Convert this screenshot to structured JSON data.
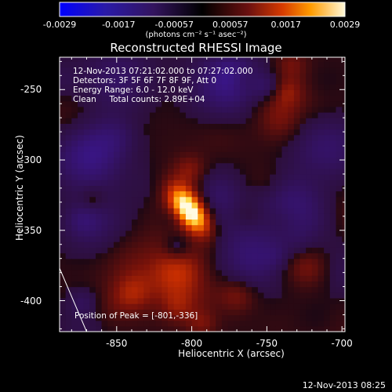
{
  "colorbar": {
    "ticks": [
      "-0.0029",
      "-0.0017",
      "-0.00057",
      "0.00057",
      "0.0017",
      "0.0029"
    ],
    "tick_values": [
      -0.0029,
      -0.0017,
      -0.00057,
      0.00057,
      0.0017,
      0.0029
    ],
    "units_text": "(photons cm⁻² s⁻¹ asec⁻²)"
  },
  "info": {
    "time_range": "12-Nov-2013 07:21:02.000 to 07:27:02.000",
    "detectors": "Detectors: 3F 5F 6F 7F 8F 9F, Att 0",
    "energy": "Energy Range: 6.0 - 12.0 keV",
    "clean": "Clean     Total counts: 2.89E+04"
  },
  "peak_text": "Position of Peak = [-801,-336]",
  "timestamp": "12-Nov-2013 08:25",
  "colors": {
    "background": "#000000",
    "text": "#ffffff"
  },
  "chart_data": {
    "type": "heatmap",
    "title": "Reconstructed RHESSI Image",
    "xlabel": "Heliocentric X (arcsec)",
    "ylabel": "Heliocentric Y (arcsec)",
    "xlim": [
      -888,
      -698
    ],
    "ylim": [
      -422,
      -227
    ],
    "x_ticks": [
      -850,
      -800,
      -750,
      -700
    ],
    "y_ticks": [
      -250,
      -300,
      -350,
      -400
    ],
    "x_tick_labels": [
      "-850",
      "-800",
      "-750",
      "-700"
    ],
    "y_tick_labels": [
      "-250",
      "-300",
      "-350",
      "-400"
    ],
    "colorbar_range": [
      -0.0029,
      0.0029
    ],
    "peak_position": [
      -801,
      -336
    ],
    "source": {
      "x": -801,
      "y": -336,
      "rotation_deg": 35,
      "sigma_major": 14,
      "sigma_minor": 7,
      "peak_value": 0.0029
    },
    "secondary_sources": [
      {
        "x": -810,
        "y": -380,
        "sigma": 14,
        "value": 0.0013
      },
      {
        "x": -840,
        "y": -395,
        "sigma": 10,
        "value": 0.001
      },
      {
        "x": -770,
        "y": -395,
        "sigma": 9,
        "value": 0.0008
      }
    ],
    "limb_line": [
      [
        -888,
        -377
      ],
      [
        -870,
        -422
      ]
    ],
    "grid": false
  }
}
